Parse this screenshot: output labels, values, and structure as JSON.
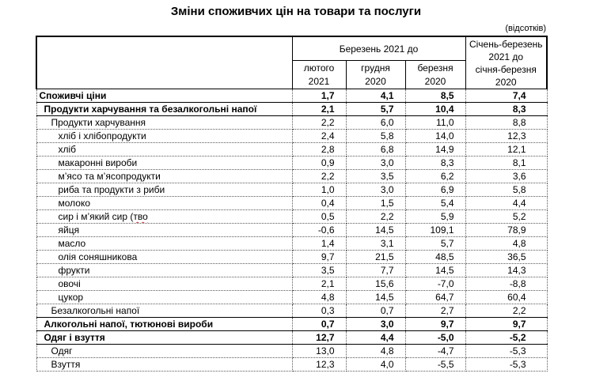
{
  "title": "Зміни споживчих цін на товари та послуги",
  "unit_note": "(відсотків)",
  "colors": {
    "text": "#000000",
    "background": "#ffffff",
    "spellcheck_underline": "#e03030",
    "solid_border": "#000000",
    "dotted_border": "#595959"
  },
  "table": {
    "group_header": "Березень 2021 до",
    "sub_headers": [
      [
        "лютого",
        "2021"
      ],
      [
        "грудня",
        "2020"
      ],
      [
        "березня",
        "2020"
      ]
    ],
    "last_col_lines": [
      "Січень-березень",
      "2021 до",
      "січня-березня",
      "2020"
    ],
    "rows": [
      {
        "label": "Споживчі ціни",
        "level": 0,
        "bold": true,
        "solid_bottom": true,
        "values": [
          "1,7",
          "4,1",
          "8,5",
          "7,4"
        ]
      },
      {
        "label": "Продукти харчування  та безалкогольні напої",
        "level": 1,
        "bold": true,
        "solid_bottom": true,
        "values": [
          "2,1",
          "5,7",
          "10,4",
          "8,3"
        ]
      },
      {
        "label": "Продукти харчування",
        "level": 2,
        "bold": false,
        "solid_bottom": false,
        "values": [
          "2,2",
          "6,0",
          "11,0",
          "8,8"
        ]
      },
      {
        "label": "хліб і хлібопродукти",
        "level": 3,
        "bold": false,
        "solid_bottom": false,
        "values": [
          "2,4",
          "5,8",
          "14,0",
          "12,3"
        ]
      },
      {
        "label": "хліб",
        "level": 3,
        "bold": false,
        "solid_bottom": false,
        "values": [
          "2,8",
          "6,8",
          "14,9",
          "12,1"
        ]
      },
      {
        "label": "макаронні вироби",
        "level": 3,
        "bold": false,
        "solid_bottom": false,
        "values": [
          "0,9",
          "3,0",
          "8,3",
          "8,1"
        ]
      },
      {
        "label": "м’ясо та м’ясопродукти",
        "level": 3,
        "bold": false,
        "solid_bottom": false,
        "values": [
          "2,2",
          "3,5",
          "6,2",
          "3,6"
        ]
      },
      {
        "label": "риба та продукти з риби",
        "level": 3,
        "bold": false,
        "solid_bottom": false,
        "values": [
          "1,0",
          "3,0",
          "6,9",
          "5,8"
        ]
      },
      {
        "label": "молоко",
        "level": 3,
        "bold": false,
        "solid_bottom": false,
        "values": [
          "0,4",
          "1,5",
          "5,4",
          "4,4"
        ]
      },
      {
        "label": "сир і м’який сир (",
        "spellcheck": "тво",
        "level": 3,
        "bold": false,
        "solid_bottom": false,
        "values": [
          "0,5",
          "2,2",
          "5,9",
          "5,2"
        ]
      },
      {
        "label": "яйця",
        "level": 3,
        "bold": false,
        "solid_bottom": false,
        "values": [
          "-0,6",
          "14,5",
          "109,1",
          "78,9"
        ]
      },
      {
        "label": "масло",
        "level": 3,
        "bold": false,
        "solid_bottom": false,
        "values": [
          "1,4",
          "3,1",
          "5,7",
          "4,8"
        ]
      },
      {
        "label": "олія соняшникова",
        "level": 3,
        "bold": false,
        "solid_bottom": false,
        "values": [
          "9,7",
          "21,5",
          "48,5",
          "36,5"
        ]
      },
      {
        "label": "фрукти",
        "level": 3,
        "bold": false,
        "solid_bottom": false,
        "values": [
          "3,5",
          "7,7",
          "14,5",
          "14,3"
        ]
      },
      {
        "label": "овочі",
        "level": 3,
        "bold": false,
        "solid_bottom": false,
        "values": [
          "2,1",
          "15,6",
          "-7,0",
          "-8,8"
        ]
      },
      {
        "label": "цукор",
        "level": 3,
        "bold": false,
        "solid_bottom": false,
        "values": [
          "4,8",
          "14,5",
          "64,7",
          "60,4"
        ]
      },
      {
        "label": "Безалкогольні напої",
        "level": 2,
        "bold": false,
        "solid_bottom": true,
        "values": [
          "0,3",
          "0,7",
          "2,7",
          "2,2"
        ]
      },
      {
        "label": "Алкогольні напої, тютюнові вироби",
        "level": 1,
        "bold": true,
        "solid_bottom": true,
        "values": [
          "0,7",
          "3,0",
          "9,7",
          "9,7"
        ]
      },
      {
        "label": "Одяг і взуття",
        "level": 1,
        "bold": true,
        "solid_bottom": true,
        "values": [
          "12,7",
          "4,4",
          "-5,0",
          "-5,2"
        ]
      },
      {
        "label": "Одяг",
        "level": 2,
        "bold": false,
        "solid_bottom": false,
        "values": [
          "13,0",
          "4,8",
          "-4,7",
          "-5,3"
        ]
      },
      {
        "label": "Взуття",
        "level": 2,
        "bold": false,
        "solid_bottom": false,
        "values": [
          "12,3",
          "4,0",
          "-5,5",
          "-5,3"
        ]
      }
    ]
  }
}
